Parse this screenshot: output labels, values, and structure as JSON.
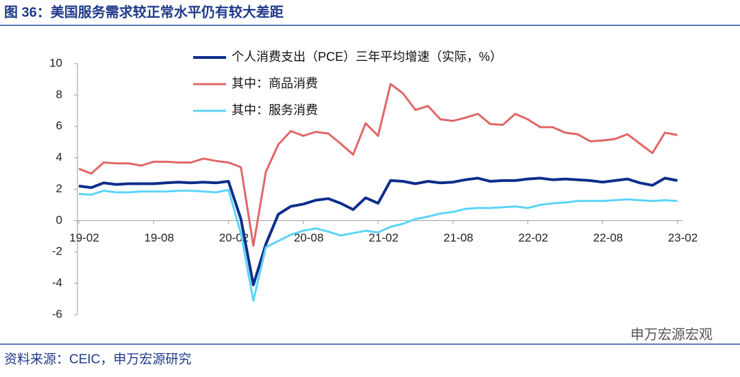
{
  "chart_data": {
    "type": "line",
    "title": "图 36：美国服务需求较正常水平仍有较大差距",
    "source": "资料来源：CEIC，申万宏源研究",
    "watermark": "申万宏源宏观",
    "categories": [
      "19-02",
      null,
      null,
      null,
      null,
      null,
      "19-08",
      null,
      null,
      null,
      null,
      null,
      "20-02",
      null,
      null,
      null,
      null,
      null,
      "20-08",
      null,
      null,
      null,
      null,
      null,
      "21-02",
      null,
      null,
      null,
      null,
      null,
      "21-08",
      null,
      null,
      null,
      null,
      null,
      "22-02",
      null,
      null,
      null,
      null,
      null,
      "22-08",
      null,
      null,
      null,
      null,
      null,
      "23-02"
    ],
    "series": [
      {
        "name": "个人消费支出（PCE）三年平均增速（实际，%）",
        "color": "#0d2d8a",
        "values": [
          2.2,
          2.1,
          2.4,
          2.3,
          2.35,
          2.35,
          2.35,
          2.4,
          2.45,
          2.4,
          2.45,
          2.4,
          2.5,
          0.1,
          -4.1,
          -1.5,
          0.4,
          0.9,
          1.05,
          1.3,
          1.4,
          1.1,
          0.7,
          1.45,
          1.1,
          2.55,
          2.5,
          2.35,
          2.5,
          2.4,
          2.45,
          2.6,
          2.7,
          2.5,
          2.55,
          2.55,
          2.65,
          2.7,
          2.6,
          2.65,
          2.6,
          2.55,
          2.45,
          2.55,
          2.65,
          2.4,
          2.25,
          2.7,
          2.55
        ]
      },
      {
        "name": "其中：商品消费",
        "color": "#e06666",
        "values": [
          3.3,
          3.0,
          3.7,
          3.65,
          3.65,
          3.5,
          3.75,
          3.75,
          3.7,
          3.7,
          3.95,
          3.8,
          3.7,
          3.4,
          -1.6,
          3.1,
          4.85,
          5.7,
          5.4,
          5.65,
          5.55,
          4.9,
          4.2,
          6.2,
          5.4,
          8.7,
          8.1,
          7.05,
          7.3,
          6.45,
          6.35,
          6.55,
          6.8,
          6.15,
          6.1,
          6.8,
          6.45,
          5.95,
          5.95,
          5.6,
          5.5,
          5.05,
          5.1,
          5.2,
          5.5,
          4.9,
          4.3,
          5.6,
          5.45
        ]
      },
      {
        "name": "其中：服务消费",
        "color": "#5bd4f7",
        "values": [
          1.7,
          1.65,
          1.9,
          1.8,
          1.8,
          1.85,
          1.85,
          1.85,
          1.9,
          1.9,
          1.85,
          1.8,
          1.95,
          -0.8,
          -5.1,
          -1.7,
          -1.3,
          -0.9,
          -0.65,
          -0.5,
          -0.7,
          -0.95,
          -0.8,
          -0.65,
          -0.75,
          -0.4,
          -0.2,
          0.1,
          0.25,
          0.45,
          0.55,
          0.75,
          0.8,
          0.8,
          0.85,
          0.9,
          0.8,
          1.0,
          1.1,
          1.15,
          1.25,
          1.25,
          1.25,
          1.3,
          1.35,
          1.3,
          1.25,
          1.3,
          1.25
        ]
      }
    ],
    "ylim": [
      -6,
      10
    ],
    "yticks": [
      -6,
      -4,
      -2,
      0,
      2,
      4,
      6,
      8,
      10
    ]
  }
}
